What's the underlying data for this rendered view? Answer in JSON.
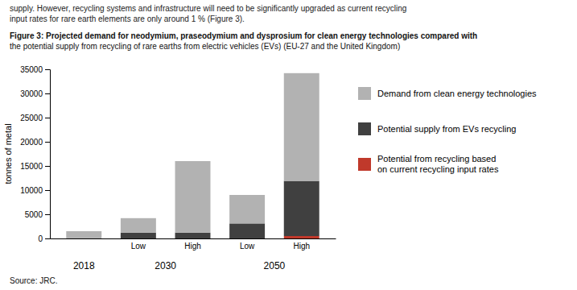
{
  "chart_data": {
    "type": "bar",
    "stacked": true,
    "grid": false,
    "annotations": [
      "supply. However, recycling systems and infrastructure will need to be significantly upgraded as current recycling",
      "input rates for rare earth elements are only around 1 % (Figure 3)."
    ],
    "title": "Figure 3: Projected demand for neodymium, praseodymium and dysprosium for clean energy technologies compared with\nthe potential supply from recycling of rare earths from electric vehicles (EVs) (EU-27 and the United Kingdom)",
    "ylabel": "tonnes of metal",
    "source": "Source: JRC.",
    "categories": [
      null,
      "Low",
      "High",
      "Low",
      "High"
    ],
    "category_groups": [
      "2018",
      "2030",
      "2030",
      "2050",
      "2050"
    ],
    "ylim": [
      0,
      35000
    ],
    "yticks": [
      0,
      5000,
      10000,
      15000,
      20000,
      25000,
      30000,
      35000
    ],
    "series": [
      {
        "name": "Demand from clean energy technologies",
        "color": "#b2b2b2",
        "values": [
          1500,
          3000,
          14800,
          5900,
          22300
        ]
      },
      {
        "name": "Potential supply from EVs recycling",
        "color": "#404040",
        "values": [
          0,
          1200,
          1200,
          3100,
          11400
        ]
      },
      {
        "name": "Potential from recycling based\non current recycling input rates",
        "color": "#c0392b",
        "values": [
          0,
          0,
          0,
          0,
          500
        ]
      }
    ]
  }
}
